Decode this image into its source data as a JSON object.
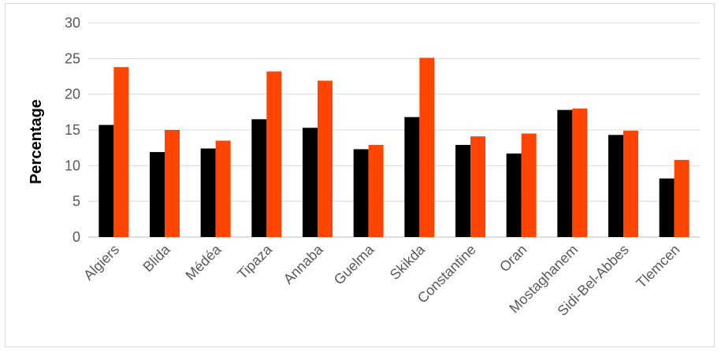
{
  "chart_data": {
    "type": "bar",
    "title": "",
    "xlabel": "",
    "ylabel": "Percentage",
    "ylim": [
      0,
      30
    ],
    "yticks": [
      0,
      5,
      10,
      15,
      20,
      25,
      30
    ],
    "grid": true,
    "legend": "none",
    "categories": [
      "Algiers",
      "Blida",
      "Médéa",
      "Tipaza",
      "Annaba",
      "Guelma",
      "Skikda",
      "Constantine",
      "Oran",
      "Mostaghanem",
      "Sidi-Bel-Abbes",
      "Tlemcen"
    ],
    "series": [
      {
        "color": "#000000",
        "values": [
          15.7,
          11.9,
          12.4,
          16.5,
          15.3,
          12.3,
          16.8,
          12.9,
          11.7,
          17.8,
          14.3,
          8.2
        ]
      },
      {
        "color": "#ff4500",
        "values": [
          23.8,
          15.0,
          13.5,
          23.2,
          21.9,
          12.9,
          25.1,
          14.1,
          14.5,
          18.0,
          14.9,
          10.8
        ]
      }
    ]
  }
}
